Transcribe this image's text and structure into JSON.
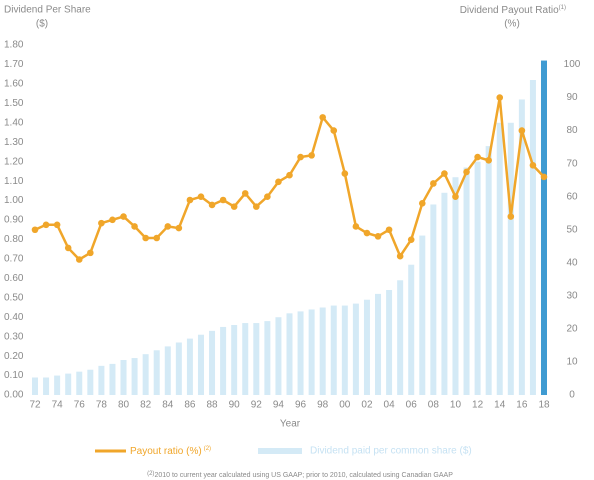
{
  "chart_data": {
    "type": "bar-line",
    "left_title": "Dividend Per Share",
    "left_unit": "($)",
    "right_title": "Dividend Payout Ratio",
    "right_title_note": "(1)",
    "right_unit": "(%)",
    "x_label": "Year",
    "categories": [
      "72",
      null,
      "74",
      null,
      "76",
      null,
      "78",
      null,
      "80",
      null,
      "82",
      null,
      "84",
      null,
      "86",
      null,
      "88",
      null,
      "90",
      null,
      "92",
      null,
      "94",
      null,
      "96",
      null,
      "98",
      null,
      "00",
      null,
      "02",
      null,
      "04",
      null,
      "06",
      null,
      "08",
      null,
      "10",
      null,
      "12",
      null,
      "14",
      null,
      "16",
      null,
      "18"
    ],
    "series": [
      {
        "name": "Dividend paid per common share ($)",
        "type": "bar",
        "color": "#d4eaf6",
        "highlight_color": "#3f9bd2",
        "values": [
          0.09,
          0.09,
          0.1,
          0.11,
          0.12,
          0.13,
          0.15,
          0.16,
          0.18,
          0.19,
          0.21,
          0.23,
          0.25,
          0.27,
          0.29,
          0.31,
          0.33,
          0.35,
          0.36,
          0.37,
          0.37,
          0.38,
          0.4,
          0.42,
          0.43,
          0.44,
          0.45,
          0.46,
          0.46,
          0.47,
          0.49,
          0.52,
          0.54,
          0.59,
          0.67,
          0.82,
          0.98,
          1.04,
          1.12,
          1.17,
          1.2,
          1.28,
          1.4,
          1.4,
          1.52,
          1.62,
          1.72
        ]
      },
      {
        "name": "Payout ratio (%)",
        "name_note": "(2)",
        "type": "line",
        "axis": "y2",
        "color": "#f0a62a",
        "values": [
          50,
          51.5,
          51.5,
          44.5,
          41,
          43,
          52,
          53,
          54,
          51,
          47.5,
          47.5,
          51,
          50.5,
          59,
          60,
          57.5,
          59,
          57,
          61,
          57,
          60,
          64.5,
          66.5,
          72,
          72.5,
          84,
          80,
          67,
          51,
          49,
          48,
          50,
          42,
          47,
          58,
          64,
          67,
          60,
          67.5,
          72,
          71,
          90,
          54,
          80,
          69.5,
          66
        ]
      }
    ],
    "ylim": [
      0,
      1.8
    ],
    "yticks": [
      {
        "value": 0,
        "label": "0.00"
      },
      {
        "value": 0.1,
        "label": "0.10"
      },
      {
        "value": 0.2,
        "label": "0.20"
      },
      {
        "value": 0.3,
        "label": "0.30"
      },
      {
        "value": 0.4,
        "label": "0.40"
      },
      {
        "value": 0.5,
        "label": "0.50"
      },
      {
        "value": 0.6,
        "label": "0.60"
      },
      {
        "value": 0.7,
        "label": "0.70"
      },
      {
        "value": 0.8,
        "label": "0.80"
      },
      {
        "value": 0.9,
        "label": "0.90"
      },
      {
        "value": 1,
        "label": "1.00"
      },
      {
        "value": 1.1,
        "label": "1.10"
      },
      {
        "value": 1.2,
        "label": "1.20"
      },
      {
        "value": 1.3,
        "label": "1.30"
      },
      {
        "value": 1.4,
        "label": "1.40"
      },
      {
        "value": 1.5,
        "label": "1.50"
      },
      {
        "value": 1.6,
        "label": "1.60"
      },
      {
        "value": 1.7,
        "label": "1.70"
      },
      {
        "value": 1.8,
        "label": "1.80"
      }
    ],
    "y2lim": [
      0,
      105.9
    ],
    "y2ticks": [
      0,
      10,
      20,
      30,
      40,
      50,
      60,
      70,
      80,
      90,
      100
    ],
    "footnote_mark": "(2)",
    "footnote": "2010 to current year calculated using US GAAP; prior to 2010, calculated using Canadian GAAP"
  }
}
